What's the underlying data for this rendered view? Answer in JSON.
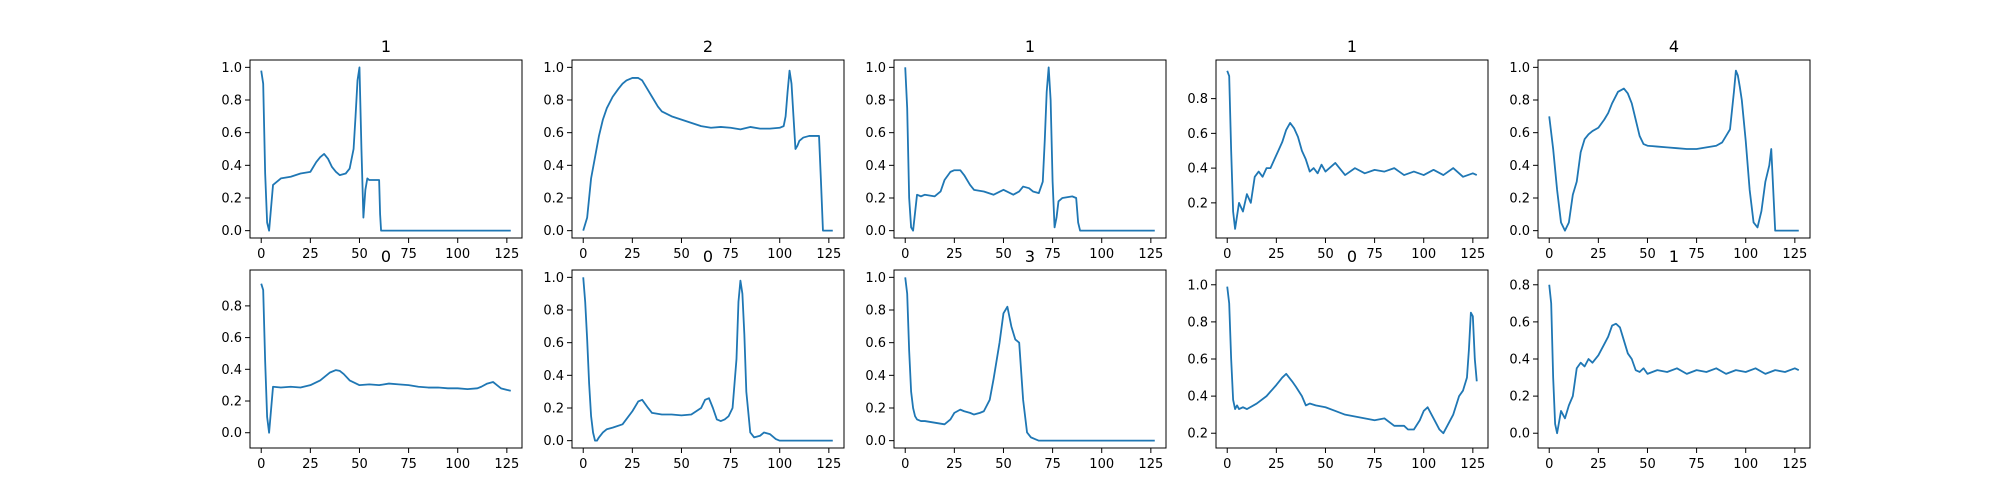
{
  "figure": {
    "background": "#ffffff",
    "line_color": "#1f77b4",
    "layout": "2 rows x 5 columns"
  },
  "chart_data": [
    {
      "type": "line",
      "title": "1",
      "xlabel": "",
      "ylabel": "",
      "xlim": [
        0,
        127
      ],
      "ylim": [
        0,
        1
      ],
      "xticks": [
        0,
        25,
        50,
        75,
        100,
        125
      ],
      "yticks": [
        0.0,
        0.2,
        0.4,
        0.6,
        0.8,
        1.0
      ],
      "x": [
        0,
        1,
        2,
        3,
        4,
        6,
        10,
        15,
        20,
        25,
        28,
        30,
        32,
        34,
        36,
        38,
        40,
        43,
        45,
        47,
        48,
        49,
        50,
        51,
        52,
        53,
        54,
        55,
        56,
        57,
        58,
        59,
        60,
        60.5,
        61,
        70,
        80,
        90,
        100,
        110,
        120,
        127
      ],
      "values": [
        0.98,
        0.9,
        0.35,
        0.05,
        0.0,
        0.28,
        0.32,
        0.33,
        0.35,
        0.36,
        0.42,
        0.45,
        0.47,
        0.44,
        0.39,
        0.36,
        0.34,
        0.35,
        0.38,
        0.5,
        0.7,
        0.92,
        1.0,
        0.5,
        0.08,
        0.25,
        0.32,
        0.31,
        0.31,
        0.31,
        0.31,
        0.31,
        0.31,
        0.1,
        0.0,
        0.0,
        0.0,
        0.0,
        0.0,
        0.0,
        0.0,
        0.0
      ]
    },
    {
      "type": "line",
      "title": "2",
      "xlabel": "",
      "ylabel": "",
      "xlim": [
        0,
        127
      ],
      "ylim": [
        0,
        1
      ],
      "xticks": [
        0,
        25,
        50,
        75,
        100,
        125
      ],
      "yticks": [
        0.0,
        0.2,
        0.4,
        0.6,
        0.8,
        1.0
      ],
      "x": [
        0,
        2,
        4,
        6,
        8,
        10,
        12,
        15,
        18,
        20,
        22,
        25,
        28,
        30,
        32,
        35,
        38,
        40,
        45,
        50,
        55,
        60,
        65,
        70,
        75,
        80,
        85,
        90,
        95,
        100,
        102,
        103,
        104,
        105,
        106,
        107,
        108,
        109,
        110,
        112,
        115,
        118,
        120,
        121,
        122,
        123,
        125,
        127
      ],
      "values": [
        0.0,
        0.08,
        0.32,
        0.45,
        0.58,
        0.68,
        0.75,
        0.82,
        0.87,
        0.9,
        0.92,
        0.935,
        0.935,
        0.92,
        0.88,
        0.82,
        0.76,
        0.73,
        0.7,
        0.68,
        0.66,
        0.64,
        0.63,
        0.635,
        0.63,
        0.62,
        0.635,
        0.625,
        0.625,
        0.63,
        0.64,
        0.7,
        0.85,
        0.98,
        0.9,
        0.7,
        0.5,
        0.52,
        0.55,
        0.57,
        0.58,
        0.58,
        0.58,
        0.3,
        0.0,
        0.0,
        0.0,
        0.0
      ]
    },
    {
      "type": "line",
      "title": "1",
      "xlabel": "",
      "ylabel": "",
      "xlim": [
        0,
        127
      ],
      "ylim": [
        0,
        1
      ],
      "xticks": [
        0,
        25,
        50,
        75,
        100,
        125
      ],
      "yticks": [
        0.0,
        0.2,
        0.4,
        0.6,
        0.8,
        1.0
      ],
      "x": [
        0,
        1,
        2,
        3,
        4,
        6,
        8,
        10,
        15,
        18,
        20,
        23,
        25,
        28,
        30,
        33,
        35,
        40,
        45,
        50,
        55,
        58,
        60,
        63,
        65,
        68,
        70,
        71,
        72,
        73,
        74,
        75,
        76,
        77,
        78,
        80,
        85,
        87,
        88,
        89,
        90,
        100,
        110,
        120,
        127
      ],
      "values": [
        1.0,
        0.75,
        0.2,
        0.02,
        0.0,
        0.22,
        0.21,
        0.22,
        0.21,
        0.24,
        0.31,
        0.36,
        0.37,
        0.37,
        0.34,
        0.28,
        0.25,
        0.24,
        0.22,
        0.25,
        0.22,
        0.24,
        0.27,
        0.26,
        0.24,
        0.23,
        0.3,
        0.55,
        0.85,
        1.0,
        0.8,
        0.3,
        0.02,
        0.08,
        0.18,
        0.2,
        0.21,
        0.2,
        0.05,
        0.0,
        0.0,
        0.0,
        0.0,
        0.0,
        0.0
      ]
    },
    {
      "type": "line",
      "title": "1",
      "xlabel": "",
      "ylabel": "",
      "xlim": [
        0,
        127
      ],
      "ylim": [
        0.04,
        0.98
      ],
      "xticks": [
        0,
        25,
        50,
        75,
        100,
        125
      ],
      "yticks": [
        0.2,
        0.4,
        0.6,
        0.8
      ],
      "x": [
        0,
        1,
        2,
        3,
        4,
        6,
        8,
        10,
        12,
        14,
        16,
        18,
        20,
        22,
        24,
        26,
        28,
        30,
        32,
        34,
        36,
        38,
        40,
        42,
        44,
        46,
        48,
        50,
        55,
        60,
        65,
        70,
        75,
        80,
        85,
        90,
        95,
        100,
        105,
        110,
        115,
        120,
        125,
        127
      ],
      "values": [
        0.96,
        0.93,
        0.5,
        0.15,
        0.05,
        0.2,
        0.15,
        0.25,
        0.2,
        0.35,
        0.38,
        0.35,
        0.4,
        0.4,
        0.45,
        0.5,
        0.55,
        0.62,
        0.66,
        0.63,
        0.58,
        0.5,
        0.45,
        0.38,
        0.4,
        0.37,
        0.42,
        0.38,
        0.43,
        0.36,
        0.4,
        0.37,
        0.39,
        0.38,
        0.4,
        0.36,
        0.38,
        0.36,
        0.39,
        0.36,
        0.4,
        0.35,
        0.37,
        0.36
      ]
    },
    {
      "type": "line",
      "title": "4",
      "xlabel": "",
      "ylabel": "",
      "xlim": [
        0,
        127
      ],
      "ylim": [
        0,
        1
      ],
      "xticks": [
        0,
        25,
        50,
        75,
        100,
        125
      ],
      "yticks": [
        0.0,
        0.2,
        0.4,
        0.6,
        0.8,
        1.0
      ],
      "x": [
        0,
        2,
        4,
        6,
        8,
        10,
        12,
        14,
        16,
        18,
        20,
        22,
        25,
        28,
        30,
        32,
        35,
        38,
        40,
        42,
        44,
        46,
        48,
        50,
        55,
        60,
        65,
        70,
        75,
        80,
        85,
        88,
        90,
        92,
        94,
        95,
        96,
        97,
        98,
        100,
        102,
        104,
        106,
        108,
        110,
        112,
        113,
        114,
        115,
        116,
        118,
        120,
        125,
        127
      ],
      "values": [
        0.7,
        0.5,
        0.25,
        0.05,
        0.0,
        0.05,
        0.22,
        0.3,
        0.48,
        0.56,
        0.59,
        0.61,
        0.63,
        0.68,
        0.72,
        0.78,
        0.85,
        0.87,
        0.84,
        0.78,
        0.68,
        0.58,
        0.53,
        0.52,
        0.515,
        0.51,
        0.505,
        0.5,
        0.5,
        0.51,
        0.52,
        0.54,
        0.58,
        0.62,
        0.85,
        0.98,
        0.95,
        0.88,
        0.8,
        0.55,
        0.25,
        0.05,
        0.02,
        0.12,
        0.3,
        0.4,
        0.5,
        0.25,
        0.0,
        0.0,
        0.0,
        0.0,
        0.0,
        0.0
      ]
    },
    {
      "type": "line",
      "title": "0",
      "xlabel": "",
      "ylabel": "",
      "xlim": [
        0,
        127
      ],
      "ylim": [
        -0.05,
        0.98
      ],
      "xticks": [
        0,
        25,
        50,
        75,
        100,
        125
      ],
      "yticks": [
        0.0,
        0.2,
        0.4,
        0.6,
        0.8
      ],
      "x": [
        0,
        1,
        2,
        3,
        4,
        6,
        10,
        15,
        20,
        25,
        30,
        35,
        38,
        40,
        42,
        45,
        50,
        55,
        60,
        65,
        70,
        75,
        80,
        85,
        90,
        95,
        100,
        105,
        110,
        112,
        115,
        118,
        120,
        122,
        125,
        127
      ],
      "values": [
        0.94,
        0.9,
        0.45,
        0.1,
        0.0,
        0.29,
        0.285,
        0.29,
        0.285,
        0.3,
        0.33,
        0.38,
        0.395,
        0.39,
        0.37,
        0.33,
        0.3,
        0.305,
        0.3,
        0.31,
        0.305,
        0.3,
        0.29,
        0.285,
        0.285,
        0.28,
        0.28,
        0.275,
        0.28,
        0.29,
        0.31,
        0.32,
        0.3,
        0.28,
        0.27,
        0.265
      ]
    },
    {
      "type": "line",
      "title": "0",
      "xlabel": "",
      "ylabel": "",
      "xlim": [
        0,
        127
      ],
      "ylim": [
        0,
        1
      ],
      "xticks": [
        0,
        25,
        50,
        75,
        100,
        125
      ],
      "yticks": [
        0.0,
        0.2,
        0.4,
        0.6,
        0.8,
        1.0
      ],
      "x": [
        0,
        1,
        2,
        3,
        4,
        5,
        6,
        7,
        8,
        10,
        12,
        15,
        20,
        25,
        28,
        30,
        33,
        35,
        40,
        45,
        50,
        55,
        60,
        62,
        64,
        66,
        68,
        70,
        72,
        74,
        76,
        78,
        79,
        80,
        81,
        82,
        83,
        85,
        87,
        90,
        92,
        95,
        98,
        100,
        110,
        120,
        127
      ],
      "values": [
        1.0,
        0.85,
        0.62,
        0.35,
        0.15,
        0.05,
        0.0,
        0.0,
        0.02,
        0.05,
        0.07,
        0.08,
        0.1,
        0.18,
        0.24,
        0.25,
        0.2,
        0.17,
        0.16,
        0.16,
        0.155,
        0.16,
        0.2,
        0.25,
        0.26,
        0.2,
        0.13,
        0.12,
        0.13,
        0.15,
        0.2,
        0.5,
        0.85,
        0.98,
        0.9,
        0.65,
        0.3,
        0.05,
        0.02,
        0.03,
        0.05,
        0.04,
        0.01,
        0.0,
        0.0,
        0.0,
        0.0
      ]
    },
    {
      "type": "line",
      "title": "3",
      "xlabel": "",
      "ylabel": "",
      "xlim": [
        0,
        127
      ],
      "ylim": [
        0,
        1
      ],
      "xticks": [
        0,
        25,
        50,
        75,
        100,
        125
      ],
      "yticks": [
        0.0,
        0.2,
        0.4,
        0.6,
        0.8,
        1.0
      ],
      "x": [
        0,
        1,
        2,
        3,
        4,
        5,
        6,
        8,
        10,
        15,
        20,
        23,
        25,
        28,
        30,
        33,
        35,
        38,
        40,
        43,
        45,
        48,
        50,
        52,
        54,
        56,
        58,
        60,
        62,
        64,
        66,
        68,
        70,
        75,
        80,
        90,
        100,
        110,
        120,
        127
      ],
      "values": [
        1.0,
        0.9,
        0.55,
        0.3,
        0.2,
        0.15,
        0.13,
        0.12,
        0.12,
        0.11,
        0.1,
        0.13,
        0.17,
        0.19,
        0.18,
        0.17,
        0.16,
        0.17,
        0.18,
        0.25,
        0.38,
        0.6,
        0.78,
        0.82,
        0.7,
        0.62,
        0.6,
        0.25,
        0.05,
        0.02,
        0.01,
        0.0,
        0.0,
        0.0,
        0.0,
        0.0,
        0.0,
        0.0,
        0.0,
        0.0
      ]
    },
    {
      "type": "line",
      "title": "0",
      "xlabel": "",
      "ylabel": "",
      "xlim": [
        0,
        127
      ],
      "ylim": [
        0.16,
        1.04
      ],
      "xticks": [
        0,
        25,
        50,
        75,
        100,
        125
      ],
      "yticks": [
        0.2,
        0.4,
        0.6,
        0.8,
        1.0
      ],
      "x": [
        0,
        1,
        2,
        3,
        4,
        5,
        6,
        8,
        10,
        15,
        20,
        25,
        28,
        30,
        33,
        35,
        38,
        40,
        42,
        45,
        50,
        55,
        60,
        65,
        70,
        75,
        80,
        85,
        90,
        92,
        95,
        98,
        100,
        102,
        104,
        106,
        108,
        110,
        112,
        115,
        118,
        120,
        122,
        123,
        124,
        125,
        126,
        127
      ],
      "values": [
        0.99,
        0.9,
        0.6,
        0.38,
        0.33,
        0.35,
        0.33,
        0.34,
        0.33,
        0.36,
        0.4,
        0.46,
        0.5,
        0.52,
        0.48,
        0.45,
        0.4,
        0.35,
        0.36,
        0.35,
        0.34,
        0.32,
        0.3,
        0.29,
        0.28,
        0.27,
        0.28,
        0.24,
        0.24,
        0.22,
        0.22,
        0.27,
        0.32,
        0.34,
        0.3,
        0.26,
        0.22,
        0.2,
        0.24,
        0.3,
        0.4,
        0.43,
        0.5,
        0.65,
        0.85,
        0.83,
        0.6,
        0.48
      ]
    },
    {
      "type": "line",
      "title": "1",
      "xlabel": "",
      "ylabel": "",
      "xlim": [
        0,
        127
      ],
      "ylim": [
        -0.04,
        0.84
      ],
      "xticks": [
        0,
        25,
        50,
        75,
        100,
        125
      ],
      "yticks": [
        0.0,
        0.2,
        0.4,
        0.6,
        0.8
      ],
      "x": [
        0,
        1,
        2,
        3,
        4,
        6,
        8,
        10,
        12,
        14,
        16,
        18,
        20,
        22,
        25,
        28,
        30,
        32,
        34,
        36,
        38,
        40,
        42,
        44,
        46,
        48,
        50,
        55,
        60,
        65,
        70,
        75,
        80,
        85,
        90,
        95,
        100,
        105,
        110,
        115,
        120,
        125,
        127
      ],
      "values": [
        0.8,
        0.7,
        0.3,
        0.05,
        0.0,
        0.12,
        0.08,
        0.15,
        0.2,
        0.35,
        0.38,
        0.36,
        0.4,
        0.38,
        0.42,
        0.48,
        0.52,
        0.58,
        0.59,
        0.57,
        0.5,
        0.43,
        0.4,
        0.34,
        0.33,
        0.35,
        0.32,
        0.34,
        0.33,
        0.35,
        0.32,
        0.34,
        0.33,
        0.35,
        0.32,
        0.34,
        0.33,
        0.35,
        0.32,
        0.34,
        0.33,
        0.35,
        0.34
      ]
    }
  ]
}
